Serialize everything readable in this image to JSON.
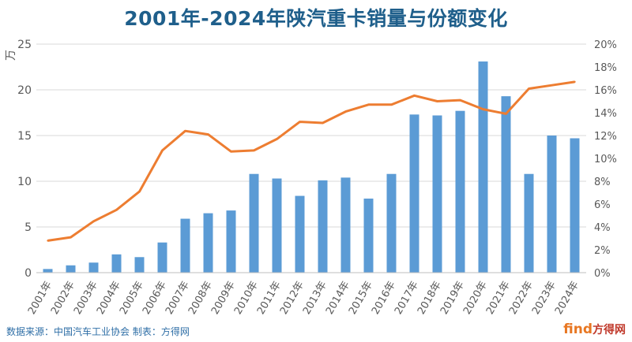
{
  "title": "2001年-2024年陕汽重卡销量与份额变化",
  "source_note": "数据来源：中国汽车工业协会  制表：方得网",
  "watermark": {
    "mark": "find",
    "name": "方得网"
  },
  "colors": {
    "bar": "#5b9bd5",
    "line": "#ed7d31",
    "title": "#1f5f8b",
    "grid": "#d9d9d9",
    "axis_text": "#595959"
  },
  "chart_data": {
    "type": "bar+line",
    "title": "2001年-2024年陕汽重卡销量与份额变化",
    "ylabel": "万",
    "ylim": [
      0,
      25
    ],
    "y_ticks": [
      "0",
      "5",
      "10",
      "15",
      "20",
      "25"
    ],
    "y2lim": [
      0,
      20
    ],
    "y2_ticks": [
      "0%",
      "2%",
      "4%",
      "6%",
      "8%",
      "10%",
      "12%",
      "14%",
      "16%",
      "18%",
      "20%"
    ],
    "grid": true,
    "legend": "none",
    "categories": [
      "2001年",
      "2002年",
      "2003年",
      "2004年",
      "2005年",
      "2006年",
      "2007年",
      "2008年",
      "2009年",
      "2010年",
      "2011年",
      "2012年",
      "2013年",
      "2014年",
      "2015年",
      "2016年",
      "2017年",
      "2018年",
      "2019年",
      "2020年",
      "2021年",
      "2022年",
      "2023年",
      "2024年"
    ],
    "series": [
      {
        "type": "bar",
        "axis": "left",
        "values": [
          0.4,
          0.8,
          1.1,
          2.0,
          1.7,
          3.3,
          5.9,
          6.5,
          6.8,
          10.8,
          10.3,
          8.4,
          10.1,
          10.4,
          8.1,
          10.8,
          17.3,
          17.2,
          17.7,
          23.1,
          19.3,
          10.8,
          15.0,
          14.7
        ]
      },
      {
        "type": "line",
        "axis": "right",
        "values": [
          2.8,
          3.1,
          4.5,
          5.5,
          7.1,
          10.7,
          12.4,
          12.1,
          10.6,
          10.7,
          11.7,
          13.2,
          13.1,
          14.1,
          14.7,
          14.7,
          15.5,
          15.0,
          15.1,
          14.3,
          13.9,
          16.1,
          16.4,
          16.7
        ]
      }
    ]
  }
}
